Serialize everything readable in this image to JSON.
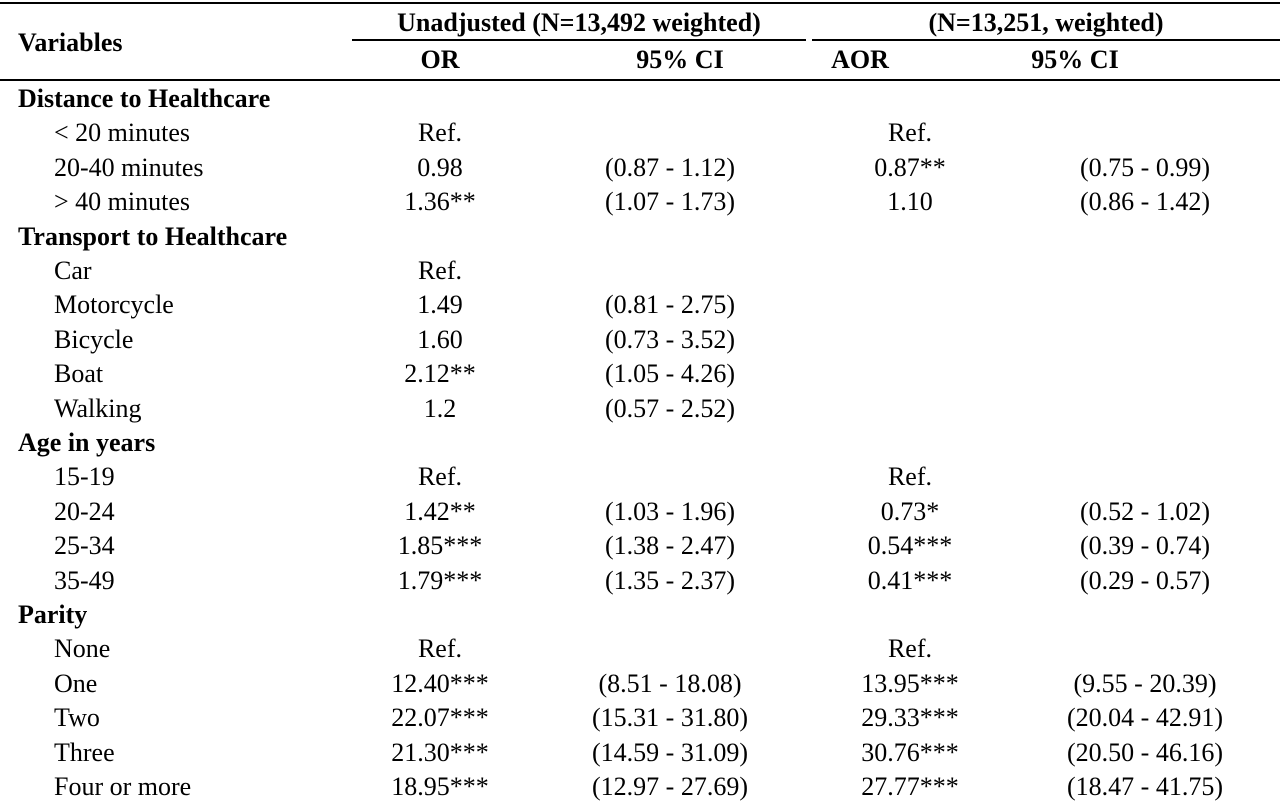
{
  "header": {
    "variables_label": "Variables",
    "group_unadjusted": "Unadjusted (N=13,492 weighted)",
    "group_adjusted": "(N=13,251, weighted)",
    "col_or": "OR",
    "col_ci_unadj": "95% CI",
    "col_aor": "AOR",
    "col_ci_adj": "95% CI"
  },
  "rows": [
    {
      "type": "section",
      "label": "Distance to Healthcare"
    },
    {
      "type": "item",
      "label": "< 20 minutes",
      "or": "Ref.",
      "ci": "",
      "aor": "Ref.",
      "aci": ""
    },
    {
      "type": "item",
      "label": "20-40 minutes",
      "or": "0.98",
      "ci": "(0.87 - 1.12)",
      "aor": "0.87**",
      "aci": "(0.75 - 0.99)"
    },
    {
      "type": "item",
      "label": "> 40 minutes",
      "or": "1.36**",
      "ci": "(1.07 - 1.73)",
      "aor": "1.10",
      "aci": "(0.86 - 1.42)"
    },
    {
      "type": "section",
      "label": "Transport to Healthcare"
    },
    {
      "type": "item",
      "label": "Car",
      "or": "Ref.",
      "ci": "",
      "aor": "",
      "aci": ""
    },
    {
      "type": "item",
      "label": "Motorcycle",
      "or": "1.49",
      "ci": "(0.81 - 2.75)",
      "aor": "",
      "aci": ""
    },
    {
      "type": "item",
      "label": "Bicycle",
      "or": "1.60",
      "ci": "(0.73 - 3.52)",
      "aor": "",
      "aci": ""
    },
    {
      "type": "item",
      "label": "Boat",
      "or": "2.12**",
      "ci": "(1.05 - 4.26)",
      "aor": "",
      "aci": ""
    },
    {
      "type": "item",
      "label": "Walking",
      "or": "1.2",
      "ci": "(0.57 - 2.52)",
      "aor": "",
      "aci": ""
    },
    {
      "type": "section",
      "label": "Age in years"
    },
    {
      "type": "item",
      "label": "15-19",
      "or": "Ref.",
      "ci": "",
      "aor": "Ref.",
      "aci": ""
    },
    {
      "type": "item",
      "label": "20-24",
      "or": "1.42**",
      "ci": "(1.03 - 1.96)",
      "aor": "0.73*",
      "aci": "(0.52 - 1.02)"
    },
    {
      "type": "item",
      "label": "25-34",
      "or": "1.85***",
      "ci": "(1.38 - 2.47)",
      "aor": "0.54***",
      "aci": "(0.39 - 0.74)"
    },
    {
      "type": "item",
      "label": "35-49",
      "or": "1.79***",
      "ci": "(1.35 - 2.37)",
      "aor": "0.41***",
      "aci": "(0.29 - 0.57)"
    },
    {
      "type": "section",
      "label": "Parity"
    },
    {
      "type": "item",
      "label": "None",
      "or": "Ref.",
      "ci": "",
      "aor": "Ref.",
      "aci": ""
    },
    {
      "type": "item",
      "label": "One",
      "or": "12.40***",
      "ci": "(8.51 - 18.08)",
      "aor": "13.95***",
      "aci": "(9.55 - 20.39)"
    },
    {
      "type": "item",
      "label": "Two",
      "or": "22.07***",
      "ci": "(15.31 - 31.80)",
      "aor": "29.33***",
      "aci": "(20.04 - 42.91)"
    },
    {
      "type": "item",
      "label": "Three",
      "or": "21.30***",
      "ci": "(14.59 - 31.09)",
      "aor": "30.76***",
      "aci": "(20.50 - 46.16)"
    },
    {
      "type": "item",
      "label": "Four or more",
      "or": "18.95***",
      "ci": "(12.97 - 27.69)",
      "aor": "27.77***",
      "aci": "(18.47 - 41.75)"
    }
  ]
}
